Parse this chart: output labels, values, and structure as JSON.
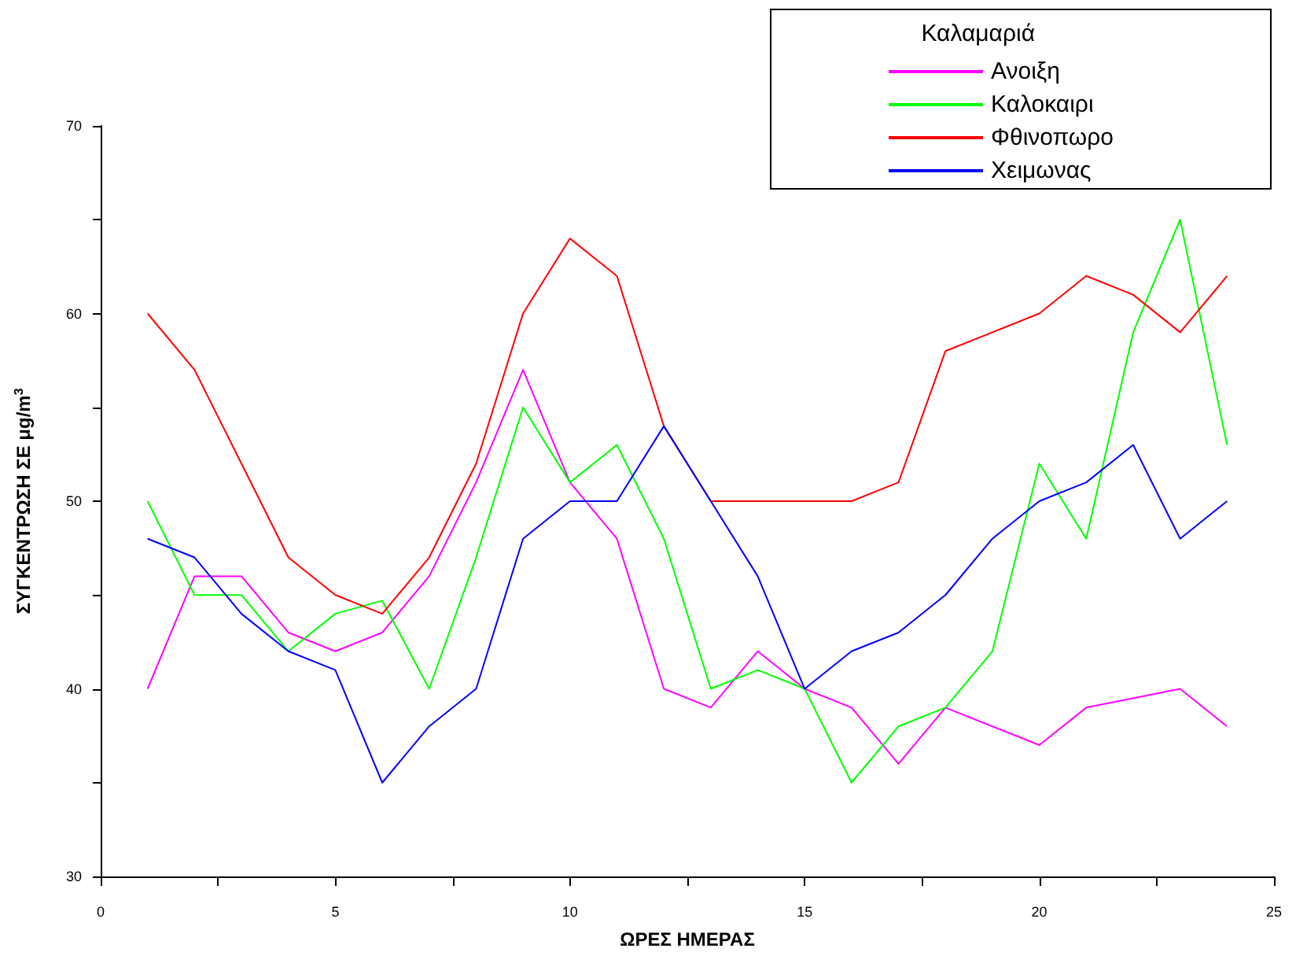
{
  "chart_data": {
    "type": "line",
    "xlabel": "ΩΡΕΣ ΗΜΕΡΑΣ",
    "ylabel": "ΣΥΓΚΕΝΤΡΩΣΗ ΣΕ μg/m$^{3}$",
    "legend_title": "Καλαμαριά",
    "x": [
      1,
      2,
      3,
      4,
      5,
      6,
      7,
      8,
      9,
      10,
      11,
      12,
      13,
      14,
      15,
      16,
      17,
      18,
      19,
      20,
      21,
      22,
      23,
      24
    ],
    "series": [
      {
        "name": "Ανοιξη",
        "color": "#ff00ff",
        "values": [
          40,
          46,
          46,
          43,
          42,
          43,
          46,
          51,
          57,
          51,
          48,
          40,
          39,
          42,
          40,
          39,
          36,
          39,
          38,
          37,
          39,
          39.5,
          40,
          38
        ]
      },
      {
        "name": "Καλοκαιρι",
        "color": "#00ff00",
        "values": [
          50,
          45,
          45,
          42,
          44,
          44.7,
          40,
          47,
          55,
          51,
          53,
          48,
          40,
          41,
          40,
          35,
          38,
          39,
          42,
          52,
          48,
          59,
          65,
          53
        ]
      },
      {
        "name": "Φθινοπωρο",
        "color": "#ff0000",
        "values": [
          60,
          57,
          52,
          47,
          45,
          44,
          47,
          52,
          60,
          64,
          62,
          54,
          50,
          50,
          50,
          50,
          51,
          58,
          59,
          60,
          62,
          61,
          59,
          62
        ]
      },
      {
        "name": "Χειμωνας",
        "color": "#0000ff",
        "values": [
          48,
          47,
          44,
          42,
          41,
          35,
          38,
          40,
          48,
          50,
          50,
          54,
          50,
          46,
          40,
          42,
          43,
          45,
          48,
          50,
          51,
          53,
          48,
          50
        ]
      }
    ],
    "xlim": [
      0,
      25
    ],
    "xticks": [
      0,
      {
        "value": 2.5,
        "label": null
      },
      5,
      {
        "value": 7.5,
        "label": null
      },
      10,
      {
        "value": 12.5,
        "label": null
      },
      15,
      {
        "value": 17.5,
        "label": null
      },
      20,
      {
        "value": 22.5,
        "label": null
      },
      25
    ],
    "ylim": [
      30,
      70
    ],
    "yticks": [
      30,
      {
        "value": 35,
        "label": null
      },
      40,
      {
        "value": 45,
        "label": null
      },
      50,
      {
        "value": 55,
        "label": null
      },
      60,
      {
        "value": 65,
        "label": null
      },
      70
    ],
    "grid": false,
    "legend": "top right",
    "marker": "none",
    "line_style": "solid"
  }
}
